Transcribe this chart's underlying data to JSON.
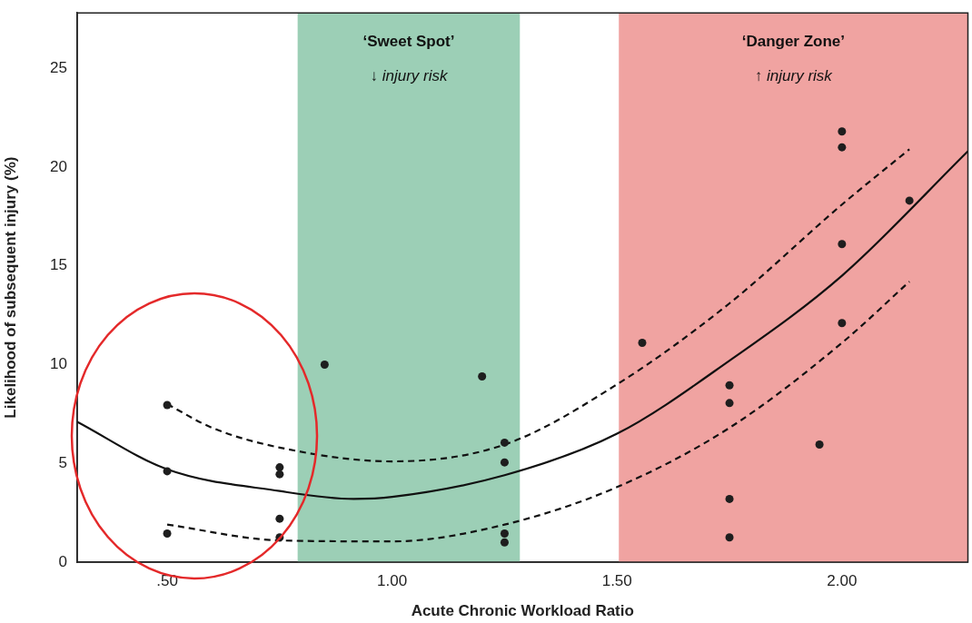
{
  "chart_data": {
    "type": "scatter",
    "xlabel": "Acute Chronic Workload Ratio",
    "ylabel": "Likelihood of subsequent injury (%)",
    "xlim": [
      0.3,
      2.28
    ],
    "ylim": [
      0,
      27.8
    ],
    "xticks": [
      {
        "value": 0.5,
        "label": ".50"
      },
      {
        "value": 1.0,
        "label": "1.00"
      },
      {
        "value": 1.5,
        "label": "1.50"
      },
      {
        "value": 2.0,
        "label": "2.00"
      }
    ],
    "yticks": [
      0,
      5,
      10,
      15,
      20,
      25
    ],
    "grid": false,
    "legend": false,
    "bands": [
      {
        "axis": "x",
        "from": 0.79,
        "to": 1.284,
        "label": "‘Sweet Spot’",
        "color": "#9ccfb6"
      },
      {
        "axis": "x",
        "from": 1.504,
        "to": 2.28,
        "label": "‘Danger Zone’",
        "color": "#f0a3a1"
      }
    ],
    "annotations": [
      "↓ injury risk",
      "↑ injury risk"
    ],
    "series": [
      {
        "type": "scatter",
        "marker": "circle",
        "color": "#1e1e1e",
        "x": [
          0.5,
          0.5,
          0.5,
          0.75,
          0.75,
          0.75,
          0.75,
          0.85,
          1.2,
          1.25,
          1.25,
          1.25,
          1.25,
          1.556,
          1.75,
          1.75,
          1.75,
          1.75,
          1.95,
          2.0,
          2.0,
          2.0,
          2.0,
          2.15
        ],
        "values": [
          7.95,
          4.6,
          1.45,
          4.8,
          4.45,
          2.2,
          1.25,
          10.0,
          9.4,
          6.05,
          5.05,
          1.45,
          1.0,
          11.1,
          8.95,
          8.05,
          3.2,
          1.25,
          5.95,
          21.8,
          21.0,
          16.1,
          12.1,
          18.3
        ]
      },
      {
        "type": "line",
        "marker": "none",
        "line_style": "solid",
        "color": "#111111",
        "x": [
          0.3,
          0.5,
          0.75,
          0.915,
          1.0,
          1.25,
          1.5,
          1.75,
          2.0,
          2.28
        ],
        "values": [
          7.1,
          4.7,
          3.6,
          3.2,
          3.3,
          4.4,
          6.5,
          10.2,
          14.5,
          20.8
        ]
      },
      {
        "type": "line",
        "marker": "none",
        "line_style": "dashed",
        "color": "#111111",
        "x": [
          0.5,
          0.6,
          0.75,
          1.0,
          1.25,
          1.5,
          1.75,
          2.0,
          2.15
        ],
        "values": [
          8.0,
          6.8,
          5.8,
          5.1,
          5.95,
          9.0,
          13.1,
          18.1,
          20.9
        ]
      },
      {
        "type": "line",
        "marker": "none",
        "line_style": "dashed",
        "color": "#111111",
        "x": [
          0.5,
          0.75,
          1.0,
          1.25,
          1.5,
          1.75,
          2.0,
          2.15
        ],
        "values": [
          1.9,
          1.1,
          1.05,
          1.9,
          3.8,
          6.8,
          11.1,
          14.2
        ]
      }
    ]
  }
}
